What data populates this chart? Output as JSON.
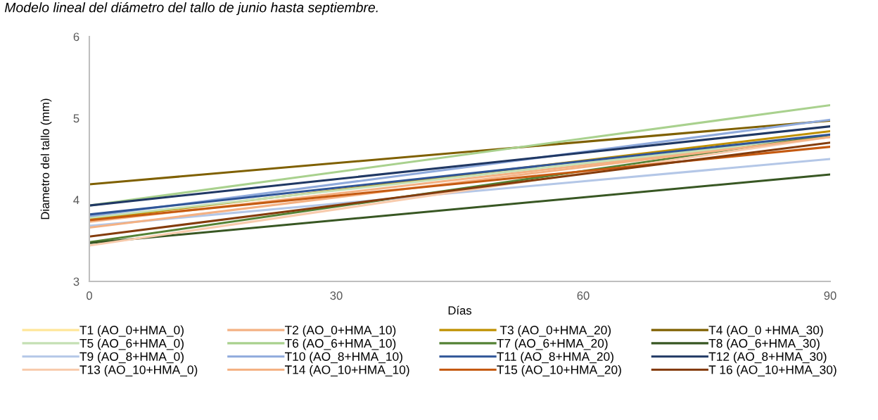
{
  "chart_data": {
    "type": "line",
    "title": "Modelo lineal del diámetro del tallo de junio hasta septiembre.",
    "xlabel": "Días",
    "ylabel": "Diametro del tallo (mm)",
    "x": [
      0,
      90
    ],
    "xlim": [
      0,
      90
    ],
    "xticks": [
      0,
      30,
      60,
      90
    ],
    "ylim": [
      3,
      6
    ],
    "yticks": [
      3,
      4,
      5,
      6
    ],
    "grid": false,
    "legend": "bottom",
    "marker": "none",
    "line_style": "solid",
    "series": [
      {
        "name": "T1 (AO_0+HMA_0)",
        "color": "#ffe699",
        "values": [
          null,
          null
        ]
      },
      {
        "name": "T2 (AO_0+HMA_10)",
        "color": "#f4b183",
        "values": [
          3.73,
          4.77
        ]
      },
      {
        "name": " T3 (AO_0+HMA_20)",
        "color": "#bf9000",
        "values": [
          3.76,
          4.84
        ]
      },
      {
        "name": "T4 (AO_0 +HMA_30)",
        "color": "#7f6000",
        "values": [
          4.19,
          4.97
        ]
      },
      {
        "name": "T5 (AO_6+HMA_0)",
        "color": "#c5e0b4",
        "values": [
          3.78,
          4.78
        ]
      },
      {
        "name": "T6 (AO_6+HMA_10)",
        "color": "#a9d18e",
        "values": [
          3.93,
          5.16
        ]
      },
      {
        "name": "T7 (AO_6+HMA_20)",
        "color": "#548235",
        "values": [
          3.48,
          4.79
        ]
      },
      {
        "name": "T8 (AO_6+HMA_30)",
        "color": "#385723",
        "values": [
          3.47,
          4.31
        ]
      },
      {
        "name": "T9 (AO_8+HMA_0)",
        "color": "#b4c7e7",
        "values": [
          3.68,
          4.5
        ]
      },
      {
        "name": "T10 (AO_8+HMA_10)",
        "color": "#8faadc",
        "values": [
          3.8,
          4.98
        ]
      },
      {
        "name": "T11 (AO_8+HMA_20)",
        "color": "#2f5597",
        "values": [
          3.82,
          4.8
        ]
      },
      {
        "name": "T12 (AO_8+HMA_30)",
        "color": "#203864",
        "values": [
          3.93,
          4.9
        ]
      },
      {
        "name": "T13 (AO_10+HMA_0)",
        "color": "#f8cbad",
        "values": [
          3.44,
          4.77
        ]
      },
      {
        "name": "T14 (AO_10+HMA_10)",
        "color": "#f4b183",
        "values": [
          3.66,
          4.77
        ]
      },
      {
        "name": "T15 (AO_10+HMA_20)",
        "color": "#c55a11",
        "values": [
          3.75,
          4.65
        ]
      },
      {
        "name": "T 16 (AO_10+HMA_30)",
        "color": "#843c0c",
        "values": [
          3.55,
          4.7
        ]
      }
    ]
  }
}
